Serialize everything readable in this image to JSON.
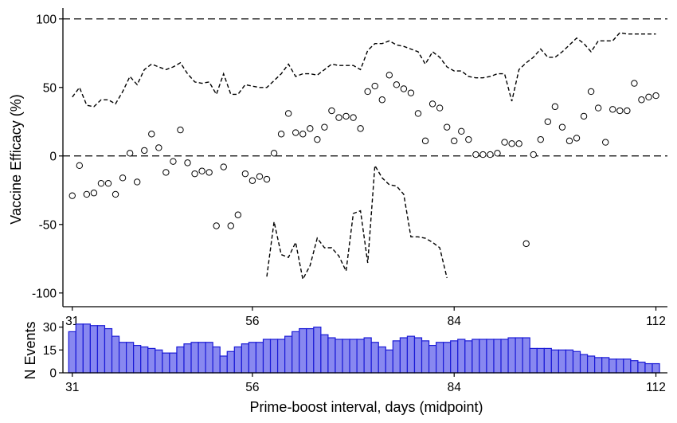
{
  "chart_data": [
    {
      "type": "scatter",
      "ylabel": "Vaccine Efficacy (%)",
      "xlim": [
        29.7,
        113.6
      ],
      "ylim": [
        -110,
        108
      ],
      "xticks": [
        31,
        56,
        84,
        112
      ],
      "yticks": [
        100,
        50,
        0,
        -50,
        -100
      ],
      "reference_lines": [
        100,
        0
      ],
      "grid": false,
      "series": [
        {
          "role": "estimate",
          "marker": "open-circle",
          "x": [
            31,
            32,
            33,
            34,
            35,
            36,
            37,
            38,
            39,
            40,
            41,
            42,
            43,
            44,
            45,
            46,
            47,
            48,
            49,
            50,
            51,
            52,
            53,
            54,
            55,
            56,
            57,
            58,
            59,
            60,
            61,
            62,
            63,
            64,
            65,
            66,
            67,
            68,
            69,
            70,
            71,
            72,
            73,
            74,
            75,
            76,
            77,
            78,
            79,
            80,
            81,
            82,
            83,
            84,
            85,
            86,
            87,
            88,
            89,
            90,
            91,
            92,
            93,
            94,
            95,
            96,
            97,
            98,
            99,
            100,
            101,
            102,
            103,
            104,
            105,
            106,
            107,
            108,
            109,
            110,
            111,
            112
          ],
          "y": [
            -29,
            -7,
            -28,
            -27,
            -20,
            -20,
            -28,
            -16,
            2,
            -19,
            4,
            16,
            6,
            -12,
            -4,
            19,
            -5,
            -13,
            -11,
            -12,
            -51,
            -8,
            -51,
            -43,
            -13,
            -18,
            -15,
            -17,
            2,
            16,
            31,
            17,
            16,
            20,
            12,
            21,
            33,
            28,
            29,
            28,
            20,
            47,
            51,
            41,
            59,
            52,
            49,
            46,
            31,
            11,
            38,
            35,
            21,
            11,
            18,
            12,
            1,
            1,
            1,
            2,
            10,
            9,
            9,
            -64,
            1,
            12,
            25,
            36,
            21,
            11,
            13,
            29,
            47,
            35,
            10,
            34,
            33,
            33,
            53,
            41,
            43,
            44
          ]
        },
        {
          "role": "upper",
          "line": "dashed",
          "x": [
            31,
            32,
            33,
            34,
            35,
            36,
            37,
            38,
            39,
            40,
            41,
            42,
            43,
            44,
            45,
            46,
            47,
            48,
            49,
            50,
            51,
            52,
            53,
            54,
            55,
            56,
            57,
            58,
            59,
            60,
            61,
            62,
            63,
            64,
            65,
            66,
            67,
            68,
            69,
            70,
            71,
            72,
            73,
            74,
            75,
            76,
            77,
            78,
            79,
            80,
            81,
            82,
            83,
            84,
            85,
            86,
            87,
            88,
            89,
            90,
            91,
            92,
            93,
            94,
            95,
            96,
            97,
            98,
            99,
            100,
            101,
            102,
            103,
            104,
            105,
            106,
            107,
            108,
            109,
            110,
            111,
            112
          ],
          "y": [
            43,
            50,
            37,
            36,
            41,
            41,
            38,
            47,
            58,
            52,
            63,
            67,
            65,
            63,
            65,
            68,
            60,
            54,
            53,
            54,
            45,
            60,
            45,
            45,
            52,
            51,
            50,
            50,
            55,
            60,
            67,
            58,
            60,
            60,
            59,
            63,
            67,
            66,
            66,
            66,
            63,
            77,
            82,
            82,
            84,
            81,
            80,
            78,
            76,
            67,
            76,
            72,
            65,
            62,
            62,
            58,
            57,
            57,
            58,
            60,
            60,
            40,
            63,
            68,
            72,
            78,
            72,
            72,
            76,
            81,
            86,
            82,
            76,
            84,
            84,
            84,
            90,
            89,
            89,
            89,
            89,
            89
          ]
        },
        {
          "role": "lower",
          "line": "dashed",
          "x": [
            58,
            59,
            60,
            61,
            62,
            63,
            64,
            65,
            66,
            67,
            68,
            69,
            70,
            71,
            72,
            73,
            74,
            75,
            76,
            77,
            78,
            79,
            80,
            81,
            82,
            83
          ],
          "y": [
            -88,
            -48,
            -72,
            -74,
            -63,
            -90,
            -80,
            -60,
            -67,
            -67,
            -73,
            -84,
            -42,
            -40,
            -78,
            -7,
            -16,
            -21,
            -22,
            -28,
            -59,
            -59,
            -60,
            -63,
            -67,
            -89
          ]
        }
      ]
    },
    {
      "type": "bar",
      "ylabel": "N Events",
      "xlabel": "Prime-boost interval, days (midpoint)",
      "xlim": [
        29.7,
        113.6
      ],
      "ylim": [
        0,
        34
      ],
      "xticks": [
        31,
        56,
        84,
        112
      ],
      "yticks": [
        30,
        15,
        0
      ],
      "bar_color": "#8888f0",
      "bar_edge_color": "#1a1ad6",
      "x": [
        31,
        32,
        33,
        34,
        35,
        36,
        37,
        38,
        39,
        40,
        41,
        42,
        43,
        44,
        45,
        46,
        47,
        48,
        49,
        50,
        51,
        52,
        53,
        54,
        55,
        56,
        57,
        58,
        59,
        60,
        61,
        62,
        63,
        64,
        65,
        66,
        67,
        68,
        69,
        70,
        71,
        72,
        73,
        74,
        75,
        76,
        77,
        78,
        79,
        80,
        81,
        82,
        83,
        84,
        85,
        86,
        87,
        88,
        89,
        90,
        91,
        92,
        93,
        94,
        95,
        96,
        97,
        98,
        99,
        100,
        101,
        102,
        103,
        104,
        105,
        106,
        107,
        108,
        109,
        110,
        111,
        112
      ],
      "values": [
        27,
        32,
        32,
        31,
        31,
        29,
        24,
        20,
        20,
        18,
        17,
        16,
        15,
        13,
        13,
        17,
        19,
        20,
        20,
        20,
        17,
        11,
        14,
        17,
        19,
        20,
        20,
        22,
        22,
        22,
        24,
        27,
        29,
        29,
        30,
        25,
        23,
        22,
        22,
        22,
        22,
        23,
        20,
        17,
        15,
        21,
        23,
        24,
        23,
        21,
        18,
        20,
        20,
        21,
        22,
        21,
        22,
        22,
        22,
        22,
        22,
        23,
        23,
        23,
        16,
        16,
        16,
        15,
        15,
        15,
        14,
        12,
        11,
        10,
        10,
        9,
        9,
        9,
        8,
        7,
        6,
        6
      ]
    }
  ]
}
